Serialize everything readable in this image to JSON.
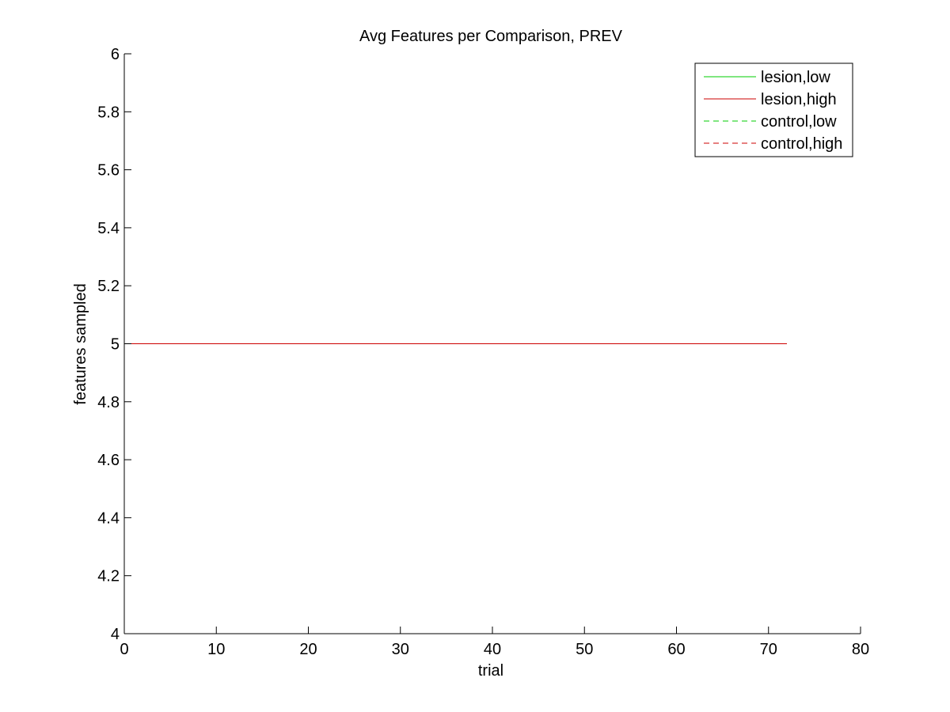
{
  "chart_data": {
    "type": "line",
    "title": "Avg Features per Comparison, PREV",
    "xlabel": "trial",
    "ylabel": "features sampled",
    "xlim": [
      0,
      80
    ],
    "ylim": [
      4,
      6
    ],
    "xticks": [
      0,
      10,
      20,
      30,
      40,
      50,
      60,
      70,
      80
    ],
    "yticks": [
      4,
      4.2,
      4.4,
      4.6,
      4.8,
      5,
      5.2,
      5.4,
      5.6,
      5.8,
      6
    ],
    "xtick_labels": [
      "0",
      "10",
      "20",
      "30",
      "40",
      "50",
      "60",
      "70",
      "80"
    ],
    "ytick_labels": [
      "4",
      "4.2",
      "4.4",
      "4.6",
      "4.8",
      "5",
      "5.2",
      "5.4",
      "5.6",
      "5.8",
      "6"
    ],
    "grid": false,
    "legend_position": "top-right",
    "series": [
      {
        "name": "lesion,low",
        "color": "#00cc00",
        "dash": "solid",
        "x": [
          0,
          72
        ],
        "y": [
          5,
          5
        ]
      },
      {
        "name": "lesion,high",
        "color": "#cc0000",
        "dash": "solid",
        "x": [
          0,
          72
        ],
        "y": [
          5,
          5
        ]
      },
      {
        "name": "control,low",
        "color": "#00cc00",
        "dash": "dashed",
        "x": [
          0,
          72
        ],
        "y": [
          5,
          5
        ]
      },
      {
        "name": "control,high",
        "color": "#cc0000",
        "dash": "dashed",
        "x": [
          0,
          72
        ],
        "y": [
          5,
          5
        ]
      }
    ]
  }
}
